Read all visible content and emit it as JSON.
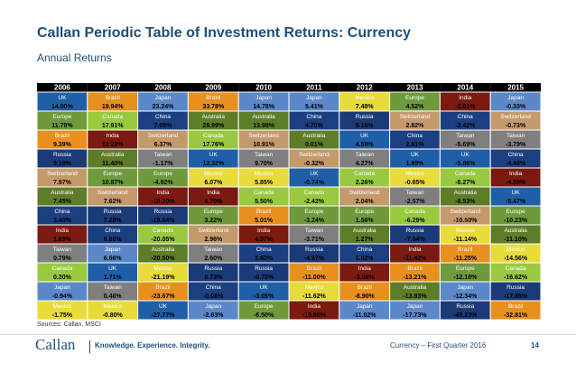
{
  "header": {
    "title": "Callan Periodic Table of Investment Returns: Currency",
    "subtitle": "Annual Returns"
  },
  "footer": {
    "source": "Sources: Callan, MSCI",
    "logo": "Callan",
    "tagline": "Knowledge. Experience. Integrity.",
    "right": "Currency – First Quarter 2016",
    "page": "14"
  },
  "colors": {
    "UK": "#1f5fa8",
    "Brazil": "#e8901e",
    "Japan": "#5b88c9",
    "Mexico": "#e8db3c",
    "Europe": "#6e9a3c",
    "India": "#7a1a10",
    "Canada": "#99c93e",
    "China": "#1b3f80",
    "Russia": "#1b3a78",
    "Switzerland": "#c49a6c",
    "Australia": "#5e7d28",
    "Taiwan": "#7f7f7f"
  },
  "chart_data": {
    "type": "table",
    "title": "Callan Periodic Table of Investment Returns: Currency",
    "subtitle": "Annual Returns",
    "years": [
      "2006",
      "2007",
      "2008",
      "2009",
      "2010",
      "2011",
      "2012",
      "2013",
      "2014",
      "2015"
    ],
    "columns": [
      [
        [
          "UK",
          "14.00%"
        ],
        [
          "Europe",
          "11.79%"
        ],
        [
          "Brazil",
          "9.39%"
        ],
        [
          "Russia",
          "9.19%"
        ],
        [
          "Switzerland",
          "7.97%"
        ],
        [
          "Australia",
          "7.45%"
        ],
        [
          "China",
          "3.40%"
        ],
        [
          "India",
          "1.69%"
        ],
        [
          "Taiwan",
          "0.79%"
        ],
        [
          "Canada",
          "0.30%"
        ],
        [
          "Japan",
          "-0.94%"
        ],
        [
          "Mexico",
          "-1.75%"
        ]
      ],
      [
        [
          "Brazil",
          "19.94%"
        ],
        [
          "Canada",
          "17.91%"
        ],
        [
          "India",
          "12.29%"
        ],
        [
          "Australia",
          "11.40%"
        ],
        [
          "Europe",
          "10.87%"
        ],
        [
          "Switzerland",
          "7.62%"
        ],
        [
          "Russia",
          "7.28%"
        ],
        [
          "China",
          "6.86%"
        ],
        [
          "Japan",
          "6.66%"
        ],
        [
          "UK",
          "1.71%"
        ],
        [
          "Taiwan",
          "0.46%"
        ],
        [
          "Mexico",
          "-0.80%"
        ]
      ],
      [
        [
          "Japan",
          "23.24%"
        ],
        [
          "China",
          "7.05%"
        ],
        [
          "Switzerland",
          "6.37%"
        ],
        [
          "Taiwan",
          "-1.17%"
        ],
        [
          "Europe",
          "-4.92%"
        ],
        [
          "India",
          "-19.10%"
        ],
        [
          "Russia",
          "-19.64%"
        ],
        [
          "Canada",
          "-20.05%"
        ],
        [
          "Australia",
          "-20.50%"
        ],
        [
          "Mexico",
          "-21.19%"
        ],
        [
          "Brazil",
          "-23.67%"
        ],
        [
          "UK",
          "-27.77%"
        ]
      ],
      [
        [
          "Brazil",
          "33.78%"
        ],
        [
          "Australia",
          "28.99%"
        ],
        [
          "Canada",
          "17.76%"
        ],
        [
          "UK",
          "12.32%"
        ],
        [
          "Mexico",
          "6.07%"
        ],
        [
          "India",
          "4.70%"
        ],
        [
          "Europe",
          "3.22%"
        ],
        [
          "Switzerland",
          "2.96%"
        ],
        [
          "Taiwan",
          "2.60%"
        ],
        [
          "Russia",
          "0.73%"
        ],
        [
          "China",
          "-0.06%"
        ],
        [
          "Japan",
          "-2.63%"
        ]
      ],
      [
        [
          "Japan",
          "14.78%"
        ],
        [
          "Australia",
          "13.98%"
        ],
        [
          "Switzerland",
          "10.91%"
        ],
        [
          "Taiwan",
          "9.70%"
        ],
        [
          "Mexico",
          "5.85%"
        ],
        [
          "Canada",
          "5.50%"
        ],
        [
          "Brazil",
          "5.01%"
        ],
        [
          "India",
          "4.07%"
        ],
        [
          "China",
          "3.60%"
        ],
        [
          "Russia",
          "-0.70%"
        ],
        [
          "UK",
          "-3.05%"
        ],
        [
          "Europe",
          "-6.50%"
        ]
      ],
      [
        [
          "Japan",
          "5.41%"
        ],
        [
          "China",
          "4.70%"
        ],
        [
          "Australia",
          "0.01%"
        ],
        [
          "Switzerland",
          "-0.32%"
        ],
        [
          "UK",
          "-0.74%"
        ],
        [
          "Canada",
          "-2.42%"
        ],
        [
          "Europe",
          "-3.24%"
        ],
        [
          "Taiwan",
          "-3.71%"
        ],
        [
          "Russia",
          "-4.97%"
        ],
        [
          "Brazil",
          "-11.00%"
        ],
        [
          "Mexico",
          "-11.62%"
        ],
        [
          "India",
          "-15.80%"
        ]
      ],
      [
        [
          "Mexico",
          "7.48%"
        ],
        [
          "Russia",
          "5.16%"
        ],
        [
          "UK",
          "4.59%"
        ],
        [
          "Taiwan",
          "4.27%"
        ],
        [
          "Canada",
          "2.26%"
        ],
        [
          "Switzerland",
          "2.04%"
        ],
        [
          "Europe",
          "1.56%"
        ],
        [
          "Australia",
          "1.27%"
        ],
        [
          "China",
          "1.02%"
        ],
        [
          "India",
          "-3.06%"
        ],
        [
          "Brazil",
          "-8.90%"
        ],
        [
          "Japan",
          "-11.02%"
        ]
      ],
      [
        [
          "Europe",
          "4.52%"
        ],
        [
          "Switzerland",
          "2.82%"
        ],
        [
          "China",
          "2.91%"
        ],
        [
          "UK",
          "1.89%"
        ],
        [
          "Mexico",
          "-0.85%"
        ],
        [
          "Taiwan",
          "-2.57%"
        ],
        [
          "Canada",
          "-6.29%"
        ],
        [
          "Russia",
          "-7.04%"
        ],
        [
          "India",
          "-11.42%"
        ],
        [
          "Brazil",
          "-13.21%"
        ],
        [
          "Australia",
          "-13.83%"
        ],
        [
          "Japan",
          "-17.73%"
        ]
      ],
      [
        [
          "India",
          "-2.01%"
        ],
        [
          "China",
          "-2.42%"
        ],
        [
          "Taiwan",
          "-5.69%"
        ],
        [
          "UK",
          "-5.86%"
        ],
        [
          "Canada",
          "-8.27%"
        ],
        [
          "Australia",
          "-8.53%"
        ],
        [
          "Switzerland",
          "-10.50%"
        ],
        [
          "Mexico",
          "-11.14%"
        ],
        [
          "Brazil",
          "-11.25%"
        ],
        [
          "Europe",
          "-12.18%"
        ],
        [
          "Japan",
          "-12.34%"
        ],
        [
          "Russia",
          "-45.23%"
        ]
      ],
      [
        [
          "Japan",
          "-0.33%"
        ],
        [
          "Switzerland",
          "-0.73%"
        ],
        [
          "Taiwan",
          "-3.79%"
        ],
        [
          "China",
          "-4.46%"
        ],
        [
          "India",
          "-4.59%"
        ],
        [
          "UK",
          "-5.47%"
        ],
        [
          "Europe",
          "-10.23%"
        ],
        [
          "Australia",
          "-11.10%"
        ],
        [
          "Mexico",
          "-14.56%"
        ],
        [
          "Canada",
          "-16.62%"
        ],
        [
          "Russia",
          "-17.85%"
        ],
        [
          "Brazil",
          "-32.81%"
        ]
      ]
    ]
  }
}
